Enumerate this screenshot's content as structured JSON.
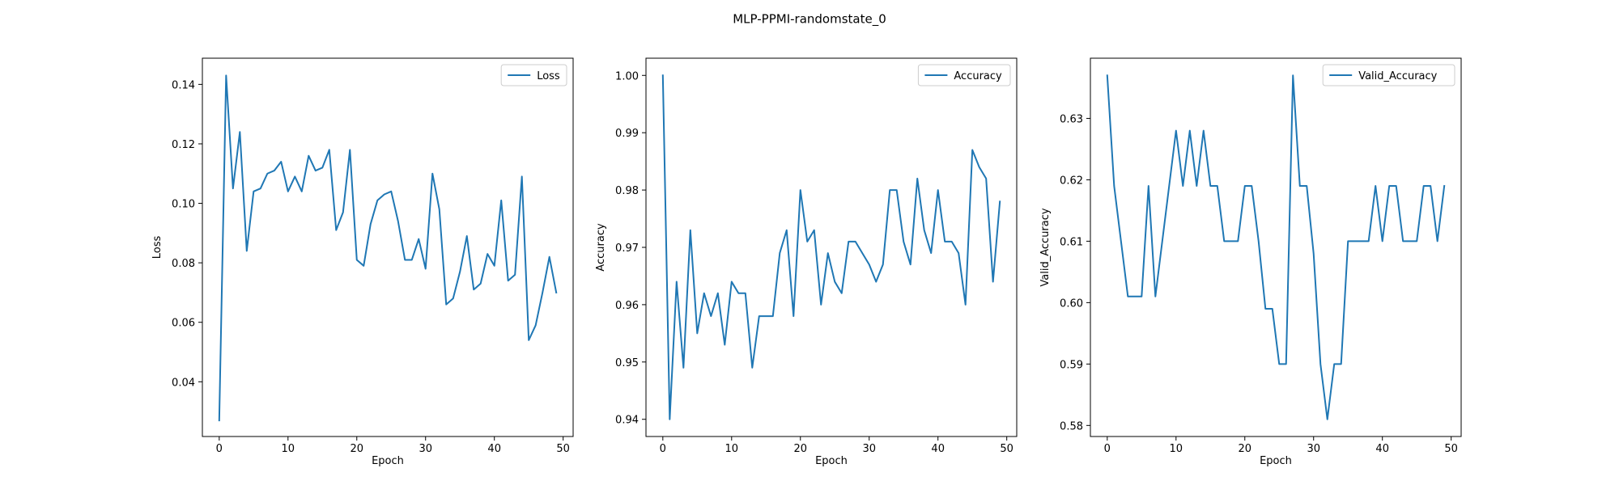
{
  "figure": {
    "title": "MLP-PPMI-randomstate_0"
  },
  "chart_data": [
    {
      "type": "line",
      "xlabel": "Epoch",
      "ylabel": "Loss",
      "xlim": [
        -2.45,
        51.45
      ],
      "ylim": [
        0.0216,
        0.1488
      ],
      "xticks": [
        0,
        10,
        20,
        30,
        40,
        50
      ],
      "yticks": [
        0.04,
        0.06,
        0.08,
        0.1,
        0.12,
        0.14
      ],
      "ytick_labels": [
        "0.04",
        "0.06",
        "0.08",
        "0.10",
        "0.12",
        "0.14"
      ],
      "legend": "upper right",
      "color": "#1f77b4",
      "series": [
        {
          "name": "Loss",
          "x": [
            0,
            1,
            2,
            3,
            4,
            5,
            6,
            7,
            8,
            9,
            10,
            11,
            12,
            13,
            14,
            15,
            16,
            17,
            18,
            19,
            20,
            21,
            22,
            23,
            24,
            25,
            26,
            27,
            28,
            29,
            30,
            31,
            32,
            33,
            34,
            35,
            36,
            37,
            38,
            39,
            40,
            41,
            42,
            43,
            44,
            45,
            46,
            47,
            48,
            49
          ],
          "y": [
            0.027,
            0.143,
            0.105,
            0.124,
            0.084,
            0.104,
            0.105,
            0.11,
            0.111,
            0.114,
            0.104,
            0.109,
            0.104,
            0.116,
            0.111,
            0.112,
            0.118,
            0.091,
            0.097,
            0.118,
            0.081,
            0.079,
            0.093,
            0.101,
            0.103,
            0.104,
            0.094,
            0.081,
            0.081,
            0.088,
            0.078,
            0.11,
            0.098,
            0.066,
            0.068,
            0.077,
            0.089,
            0.071,
            0.073,
            0.083,
            0.079,
            0.101,
            0.074,
            0.076,
            0.109,
            0.054,
            0.059,
            0.07,
            0.082,
            0.07
          ]
        }
      ]
    },
    {
      "type": "line",
      "xlabel": "Epoch",
      "ylabel": "Accuracy",
      "xlim": [
        -2.45,
        51.45
      ],
      "ylim": [
        0.937,
        1.003
      ],
      "xticks": [
        0,
        10,
        20,
        30,
        40,
        50
      ],
      "yticks": [
        0.94,
        0.95,
        0.96,
        0.97,
        0.98,
        0.99,
        1.0
      ],
      "ytick_labels": [
        "0.94",
        "0.95",
        "0.96",
        "0.97",
        "0.98",
        "0.99",
        "1.00"
      ],
      "legend": "upper right",
      "color": "#1f77b4",
      "series": [
        {
          "name": "Accuracy",
          "x": [
            0,
            1,
            2,
            3,
            4,
            5,
            6,
            7,
            8,
            9,
            10,
            11,
            12,
            13,
            14,
            15,
            16,
            17,
            18,
            19,
            20,
            21,
            22,
            23,
            24,
            25,
            26,
            27,
            28,
            29,
            30,
            31,
            32,
            33,
            34,
            35,
            36,
            37,
            38,
            39,
            40,
            41,
            42,
            43,
            44,
            45,
            46,
            47,
            48,
            49
          ],
          "y": [
            1.0,
            0.94,
            0.964,
            0.949,
            0.973,
            0.955,
            0.962,
            0.958,
            0.962,
            0.953,
            0.964,
            0.962,
            0.962,
            0.949,
            0.958,
            0.958,
            0.958,
            0.969,
            0.973,
            0.958,
            0.98,
            0.971,
            0.973,
            0.96,
            0.969,
            0.964,
            0.962,
            0.971,
            0.971,
            0.969,
            0.967,
            0.964,
            0.967,
            0.98,
            0.98,
            0.971,
            0.967,
            0.982,
            0.973,
            0.969,
            0.98,
            0.971,
            0.971,
            0.969,
            0.96,
            0.987,
            0.984,
            0.982,
            0.964,
            0.978
          ]
        }
      ]
    },
    {
      "type": "line",
      "xlabel": "Epoch",
      "ylabel": "Valid_Accuracy",
      "xlim": [
        -2.45,
        51.45
      ],
      "ylim": [
        0.5782,
        0.6398
      ],
      "xticks": [
        0,
        10,
        20,
        30,
        40,
        50
      ],
      "yticks": [
        0.58,
        0.59,
        0.6,
        0.61,
        0.62,
        0.63
      ],
      "ytick_labels": [
        "0.58",
        "0.59",
        "0.60",
        "0.61",
        "0.62",
        "0.63"
      ],
      "legend": "upper right",
      "color": "#1f77b4",
      "series": [
        {
          "name": "Valid_Accuracy",
          "x": [
            0,
            1,
            2,
            3,
            4,
            5,
            6,
            7,
            8,
            9,
            10,
            11,
            12,
            13,
            14,
            15,
            16,
            17,
            18,
            19,
            20,
            21,
            22,
            23,
            24,
            25,
            26,
            27,
            28,
            29,
            30,
            31,
            32,
            33,
            34,
            35,
            36,
            37,
            38,
            39,
            40,
            41,
            42,
            43,
            44,
            45,
            46,
            47,
            48,
            49
          ],
          "y": [
            0.637,
            0.619,
            0.61,
            0.601,
            0.601,
            0.601,
            0.619,
            0.601,
            0.61,
            0.619,
            0.628,
            0.619,
            0.628,
            0.619,
            0.628,
            0.619,
            0.619,
            0.61,
            0.61,
            0.61,
            0.619,
            0.619,
            0.61,
            0.599,
            0.599,
            0.59,
            0.59,
            0.637,
            0.619,
            0.619,
            0.608,
            0.59,
            0.581,
            0.59,
            0.59,
            0.61,
            0.61,
            0.61,
            0.61,
            0.619,
            0.61,
            0.619,
            0.619,
            0.61,
            0.61,
            0.61,
            0.619,
            0.619,
            0.61,
            0.619
          ]
        }
      ]
    }
  ]
}
